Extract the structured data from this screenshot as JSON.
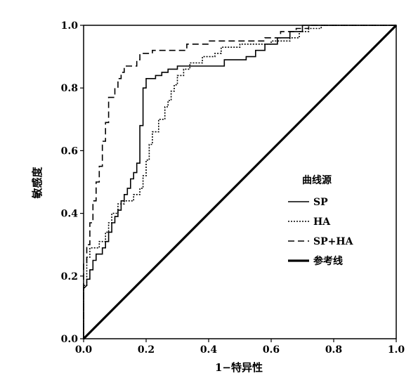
{
  "chart_data": {
    "type": "line",
    "title": "",
    "xlabel": "1−特异性",
    "ylabel": "敏感度",
    "xlim": [
      0,
      1
    ],
    "ylim": [
      0,
      1
    ],
    "x_ticks": [
      "0.0",
      "0.2",
      "0.4",
      "0.6",
      "0.8",
      "1.0"
    ],
    "y_ticks": [
      "0.0",
      "0.2",
      "0.4",
      "0.6",
      "0.8",
      "1.0"
    ],
    "grid": false,
    "legend": {
      "title": "曲线源",
      "placement": "center-right"
    },
    "series": [
      {
        "name": "SP",
        "style": "solid",
        "points": [
          [
            0,
            0
          ],
          [
            0,
            0.07
          ],
          [
            0,
            0.16
          ],
          [
            0.01,
            0.17
          ],
          [
            0.01,
            0.19
          ],
          [
            0.02,
            0.19
          ],
          [
            0.02,
            0.22
          ],
          [
            0.03,
            0.22
          ],
          [
            0.03,
            0.25
          ],
          [
            0.04,
            0.25
          ],
          [
            0.04,
            0.27
          ],
          [
            0.06,
            0.27
          ],
          [
            0.06,
            0.29
          ],
          [
            0.07,
            0.29
          ],
          [
            0.07,
            0.31
          ],
          [
            0.08,
            0.31
          ],
          [
            0.08,
            0.34
          ],
          [
            0.09,
            0.34
          ],
          [
            0.09,
            0.37
          ],
          [
            0.1,
            0.37
          ],
          [
            0.1,
            0.39
          ],
          [
            0.11,
            0.39
          ],
          [
            0.11,
            0.41
          ],
          [
            0.12,
            0.41
          ],
          [
            0.12,
            0.44
          ],
          [
            0.13,
            0.44
          ],
          [
            0.13,
            0.46
          ],
          [
            0.14,
            0.46
          ],
          [
            0.14,
            0.48
          ],
          [
            0.15,
            0.48
          ],
          [
            0.15,
            0.51
          ],
          [
            0.16,
            0.51
          ],
          [
            0.16,
            0.53
          ],
          [
            0.17,
            0.53
          ],
          [
            0.17,
            0.56
          ],
          [
            0.18,
            0.56
          ],
          [
            0.18,
            0.68
          ],
          [
            0.19,
            0.68
          ],
          [
            0.19,
            0.8
          ],
          [
            0.2,
            0.8
          ],
          [
            0.2,
            0.83
          ],
          [
            0.23,
            0.83
          ],
          [
            0.23,
            0.84
          ],
          [
            0.25,
            0.84
          ],
          [
            0.25,
            0.85
          ],
          [
            0.27,
            0.85
          ],
          [
            0.27,
            0.86
          ],
          [
            0.3,
            0.86
          ],
          [
            0.3,
            0.87
          ],
          [
            0.45,
            0.87
          ],
          [
            0.45,
            0.89
          ],
          [
            0.52,
            0.89
          ],
          [
            0.52,
            0.9
          ],
          [
            0.55,
            0.9
          ],
          [
            0.55,
            0.92
          ],
          [
            0.58,
            0.92
          ],
          [
            0.58,
            0.94
          ],
          [
            0.62,
            0.94
          ],
          [
            0.62,
            0.96
          ],
          [
            0.66,
            0.96
          ],
          [
            0.66,
            0.98
          ],
          [
            0.7,
            0.98
          ],
          [
            0.7,
            1.0
          ],
          [
            1.0,
            1.0
          ]
        ]
      },
      {
        "name": "HA",
        "style": "dotted",
        "points": [
          [
            0,
            0
          ],
          [
            0,
            0.17
          ],
          [
            0.01,
            0.17
          ],
          [
            0.01,
            0.26
          ],
          [
            0.02,
            0.26
          ],
          [
            0.02,
            0.29
          ],
          [
            0.05,
            0.29
          ],
          [
            0.05,
            0.31
          ],
          [
            0.07,
            0.31
          ],
          [
            0.07,
            0.34
          ],
          [
            0.08,
            0.34
          ],
          [
            0.08,
            0.37
          ],
          [
            0.09,
            0.37
          ],
          [
            0.09,
            0.4
          ],
          [
            0.11,
            0.4
          ],
          [
            0.11,
            0.43
          ],
          [
            0.13,
            0.43
          ],
          [
            0.13,
            0.44
          ],
          [
            0.16,
            0.44
          ],
          [
            0.16,
            0.46
          ],
          [
            0.18,
            0.46
          ],
          [
            0.18,
            0.48
          ],
          [
            0.19,
            0.48
          ],
          [
            0.19,
            0.52
          ],
          [
            0.2,
            0.52
          ],
          [
            0.2,
            0.57
          ],
          [
            0.21,
            0.57
          ],
          [
            0.21,
            0.62
          ],
          [
            0.22,
            0.62
          ],
          [
            0.22,
            0.66
          ],
          [
            0.24,
            0.66
          ],
          [
            0.24,
            0.7
          ],
          [
            0.26,
            0.7
          ],
          [
            0.26,
            0.74
          ],
          [
            0.27,
            0.74
          ],
          [
            0.27,
            0.76
          ],
          [
            0.28,
            0.76
          ],
          [
            0.28,
            0.79
          ],
          [
            0.29,
            0.79
          ],
          [
            0.29,
            0.81
          ],
          [
            0.3,
            0.81
          ],
          [
            0.3,
            0.84
          ],
          [
            0.32,
            0.84
          ],
          [
            0.32,
            0.86
          ],
          [
            0.34,
            0.86
          ],
          [
            0.34,
            0.88
          ],
          [
            0.38,
            0.88
          ],
          [
            0.38,
            0.9
          ],
          [
            0.42,
            0.9
          ],
          [
            0.42,
            0.91
          ],
          [
            0.44,
            0.91
          ],
          [
            0.44,
            0.93
          ],
          [
            0.5,
            0.93
          ],
          [
            0.5,
            0.94
          ],
          [
            0.6,
            0.94
          ],
          [
            0.6,
            0.95
          ],
          [
            0.66,
            0.95
          ],
          [
            0.66,
            0.96
          ],
          [
            0.69,
            0.96
          ],
          [
            0.69,
            0.98
          ],
          [
            0.72,
            0.98
          ],
          [
            0.72,
            0.99
          ],
          [
            0.76,
            0.99
          ],
          [
            0.76,
            1.0
          ],
          [
            1.0,
            1.0
          ]
        ]
      },
      {
        "name": "SP+HA",
        "style": "dashed",
        "points": [
          [
            0,
            0
          ],
          [
            0,
            0.24
          ],
          [
            0.01,
            0.24
          ],
          [
            0.01,
            0.3
          ],
          [
            0.02,
            0.3
          ],
          [
            0.02,
            0.37
          ],
          [
            0.03,
            0.37
          ],
          [
            0.03,
            0.44
          ],
          [
            0.04,
            0.44
          ],
          [
            0.04,
            0.5
          ],
          [
            0.05,
            0.5
          ],
          [
            0.05,
            0.55
          ],
          [
            0.06,
            0.55
          ],
          [
            0.06,
            0.63
          ],
          [
            0.07,
            0.63
          ],
          [
            0.07,
            0.69
          ],
          [
            0.08,
            0.69
          ],
          [
            0.08,
            0.77
          ],
          [
            0.1,
            0.77
          ],
          [
            0.1,
            0.8
          ],
          [
            0.11,
            0.8
          ],
          [
            0.11,
            0.83
          ],
          [
            0.12,
            0.83
          ],
          [
            0.12,
            0.85
          ],
          [
            0.13,
            0.85
          ],
          [
            0.13,
            0.87
          ],
          [
            0.17,
            0.87
          ],
          [
            0.17,
            0.89
          ],
          [
            0.18,
            0.89
          ],
          [
            0.18,
            0.91
          ],
          [
            0.22,
            0.91
          ],
          [
            0.22,
            0.92
          ],
          [
            0.33,
            0.92
          ],
          [
            0.33,
            0.94
          ],
          [
            0.4,
            0.94
          ],
          [
            0.4,
            0.95
          ],
          [
            0.58,
            0.95
          ],
          [
            0.58,
            0.96
          ],
          [
            0.63,
            0.96
          ],
          [
            0.63,
            0.98
          ],
          [
            0.68,
            0.98
          ],
          [
            0.68,
            0.99
          ],
          [
            0.72,
            0.99
          ],
          [
            0.72,
            1.0
          ],
          [
            1.0,
            1.0
          ]
        ]
      },
      {
        "name": "参考线",
        "style": "bold",
        "points": [
          [
            0,
            0
          ],
          [
            1,
            1
          ]
        ]
      }
    ]
  }
}
